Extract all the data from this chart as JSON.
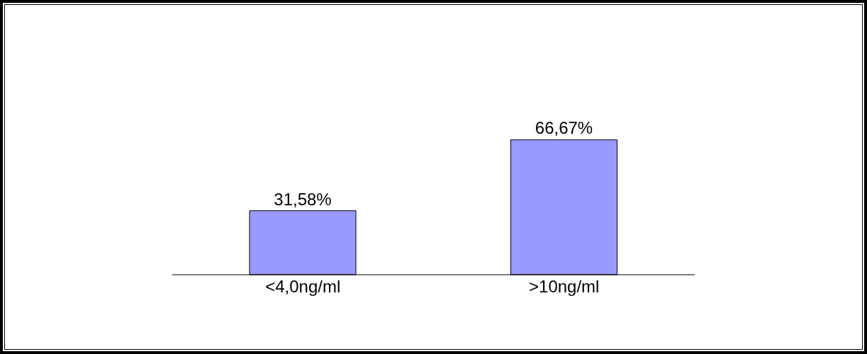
{
  "chart_data": {
    "type": "bar",
    "categories": [
      "<4,0ng/ml",
      ">10ng/ml"
    ],
    "values": [
      31.58,
      66.67
    ],
    "value_labels": [
      "31,58%",
      "66,67%"
    ],
    "color": "#9999ff"
  }
}
